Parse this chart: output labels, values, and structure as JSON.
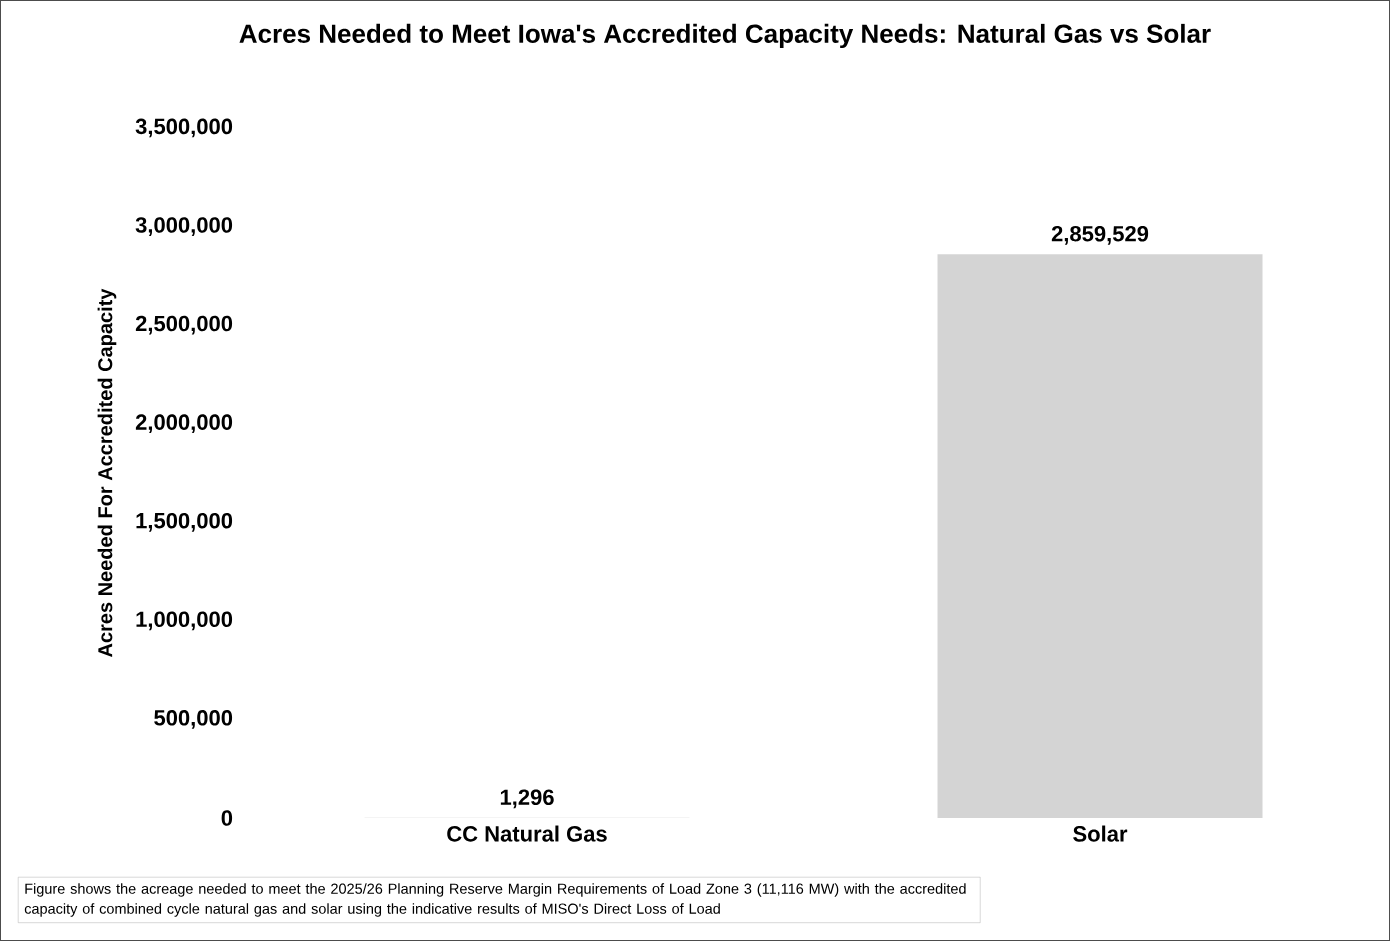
{
  "chart_data": {
    "type": "bar",
    "title": "Acres Needed to Meet Iowa's Accredited Capacity Needs: Natural Gas vs Solar",
    "ylabel": "Acres Needed For Accredited Capacity",
    "categories": [
      "CC Natural Gas",
      "Solar"
    ],
    "values": [
      1296,
      2859529
    ],
    "value_labels": [
      "1,296",
      "2,859,529"
    ],
    "color": "#d4d4d4",
    "ylim": [
      0,
      3500000
    ],
    "yticks": [
      0,
      {
        "value": 500000,
        "label": "500,000"
      },
      {
        "value": 1000000,
        "label": "1,000,000"
      },
      {
        "value": 1500000,
        "label": "1,500,000"
      },
      {
        "value": 2000000,
        "label": "2,000,000"
      },
      {
        "value": 2500000,
        "label": "2,500,000"
      },
      {
        "value": 3000000,
        "label": "3,000,000"
      },
      {
        "value": 3500000,
        "label": "3,500,000"
      }
    ],
    "annotations": [
      "Figure shows the acreage needed to meet the 2025/26 Planning Reserve Margin Requirements of Load Zone 3 (11,116 MW) with the accredited capacity of combined cycle natural gas and solar using the indicative results of MISO's Direct Loss of Load"
    ]
  }
}
